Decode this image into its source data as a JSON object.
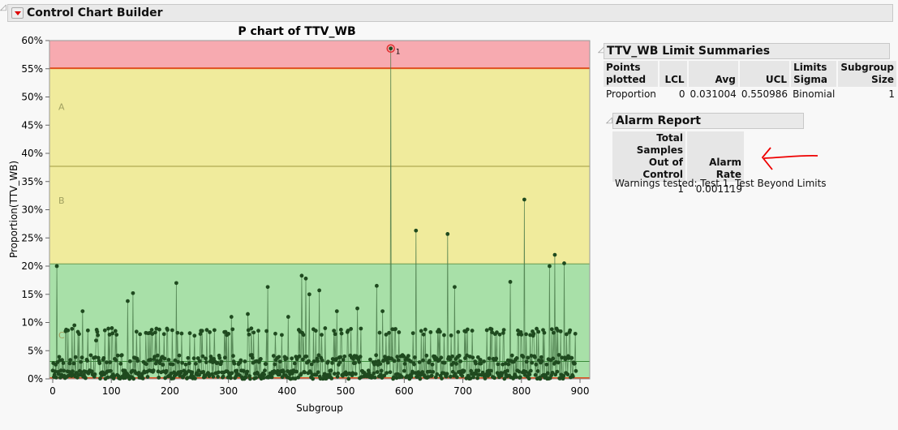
{
  "header": {
    "title": "Control Chart Builder"
  },
  "limit_summary": {
    "title": "TTV_WB Limit Summaries",
    "columns": [
      "Points plotted",
      "LCL",
      "Avg",
      "UCL",
      "Limits Sigma",
      "Subgroup Size"
    ],
    "row": [
      "Proportion",
      "0",
      "0.031004",
      "0.550986",
      "Binomial",
      "1"
    ]
  },
  "alarm_report": {
    "title": "Alarm Report",
    "columns": [
      "Total Samples Out of Control",
      "Alarm Rate"
    ],
    "row": [
      "1",
      "0.001119"
    ],
    "warnings": "Warnings tested: Test 1, Test Beyond Limits"
  },
  "chart_data": {
    "type": "line",
    "title": "P chart of TTV_WB",
    "xlabel": "Subgroup",
    "ylabel": "Proportion(TTV_WB)",
    "xlim": [
      0,
      915
    ],
    "ylim": [
      0,
      60
    ],
    "xticks": [
      "0",
      "100",
      "200",
      "300",
      "400",
      "500",
      "600",
      "700",
      "800",
      "900"
    ],
    "yticks": [
      "0%",
      "5%",
      "10%",
      "15%",
      "20%",
      "25%",
      "30%",
      "35%",
      "40%",
      "45%",
      "50%",
      "55%",
      "60%"
    ],
    "limits": {
      "LCL": 0,
      "Avg": 3.1004,
      "UCL": 55.0986
    },
    "zones": {
      "A_B": 37.7,
      "B_C": 20.4,
      "labels": [
        "A",
        "B",
        "C"
      ]
    },
    "zone_colors": {
      "beyond": "#f7aab0",
      "A": "#f0eb9c",
      "B": "#f0e69c",
      "C": "#a8e0a8"
    },
    "n_points": 894,
    "peaks": [
      [
        7,
        20
      ],
      [
        37,
        9.5
      ],
      [
        51,
        12
      ],
      [
        74,
        6.8
      ],
      [
        101,
        9
      ],
      [
        107,
        8.5
      ],
      [
        128,
        13.8
      ],
      [
        137,
        15.2
      ],
      [
        196,
        8.7
      ],
      [
        211,
        17
      ],
      [
        305,
        11
      ],
      [
        333,
        11.5
      ],
      [
        367,
        16.3
      ],
      [
        402,
        11
      ],
      [
        425,
        18.3
      ],
      [
        432,
        17.8
      ],
      [
        438,
        15
      ],
      [
        455,
        15.7
      ],
      [
        485,
        12
      ],
      [
        520,
        12.5
      ],
      [
        553,
        16.5
      ],
      [
        563,
        12
      ],
      [
        577,
        58.6
      ],
      [
        620,
        26.3
      ],
      [
        674,
        25.7
      ],
      [
        686,
        16.3
      ],
      [
        781,
        17.2
      ],
      [
        805,
        31.8
      ],
      [
        848,
        20
      ],
      [
        857,
        22
      ],
      [
        873,
        20.5
      ]
    ],
    "out_of_control": [
      {
        "x": 577,
        "y": 58.6,
        "label": "1"
      }
    ]
  }
}
